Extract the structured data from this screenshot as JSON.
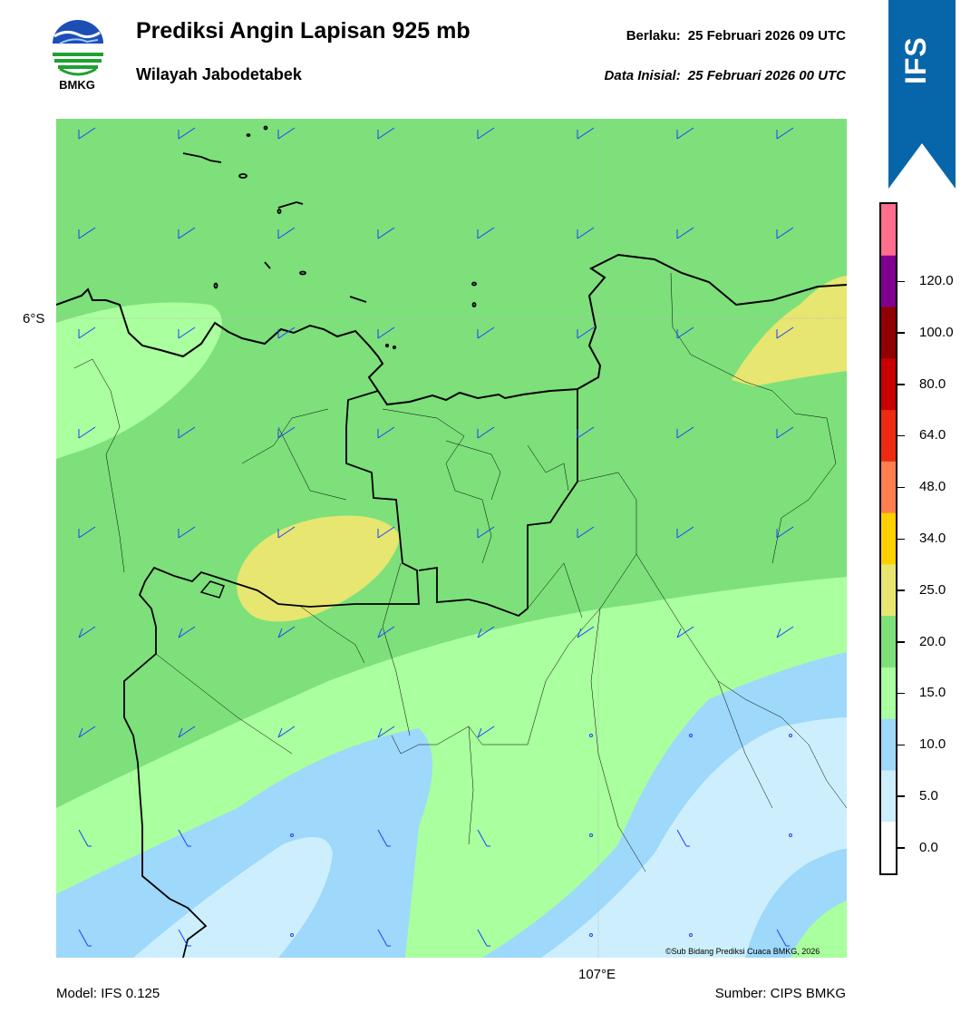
{
  "header": {
    "title": "Prediksi Angin Lapisan 925 mb",
    "region": "Wilayah Jabodetabek",
    "valid_label": "Berlaku:",
    "valid_time": "25 Februari 2026 09 UTC",
    "init_label": "Data Inisial:",
    "init_time": "25 Februari 2026 00 UTC",
    "logo_text": "BMKG",
    "model_badge": "IFS"
  },
  "map": {
    "lat_label": "6°S",
    "lon_label": "107°E",
    "copyright": "©Sub Bidang Prediksi Cuaca BMKG, 2026",
    "wind_barb_color": "#1f3fff",
    "coastline_color": "#000000"
  },
  "footer": {
    "model": "Model: IFS 0.125",
    "source": "Sumber: CIPS BMKG"
  },
  "colorbar": {
    "ticks": [
      "0.0",
      "5.0",
      "10.0",
      "15.0",
      "20.0",
      "25.0",
      "34.0",
      "48.0",
      "64.0",
      "80.0",
      "100.0",
      "120.0"
    ],
    "colors": [
      "#ffffff",
      "#cdeffd",
      "#9ed8fb",
      "#aaff9e",
      "#7de07a",
      "#e6e670",
      "#ffd000",
      "#ff7f50",
      "#ee2a10",
      "#c80000",
      "#900000",
      "#800090",
      "#ff6e8c"
    ]
  }
}
